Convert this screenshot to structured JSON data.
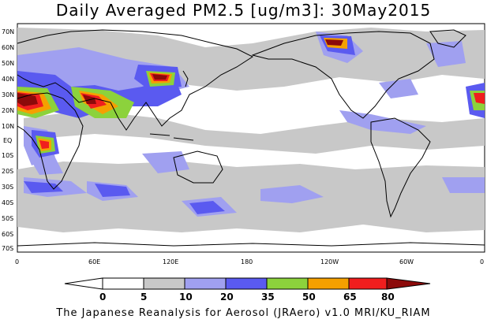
{
  "title": "Daily Averaged PM2.5 [ug/m3]: 30May2015",
  "footer": "The Japanese Reanalysis for Aerosol (JRAero) v1.0 MRI/KU_RIAM",
  "lat_labels": [
    "70N",
    "60N",
    "50N",
    "40N",
    "30N",
    "20N",
    "10N",
    "EQ",
    "10S",
    "20S",
    "30S",
    "40S",
    "50S",
    "60S",
    "70S"
  ],
  "lon_labels": [
    "0",
    "60E",
    "120E",
    "180",
    "120W",
    "60W",
    "0"
  ],
  "colorbar": {
    "labels": [
      "0",
      "5",
      "10",
      "20",
      "35",
      "50",
      "65",
      "80"
    ],
    "colors": [
      "#ffffff",
      "#c8c8c8",
      "#a0a0f0",
      "#5a5af0",
      "#8cd23c",
      "#f5a000",
      "#f01e1e",
      "#8c0a0a"
    ]
  }
}
